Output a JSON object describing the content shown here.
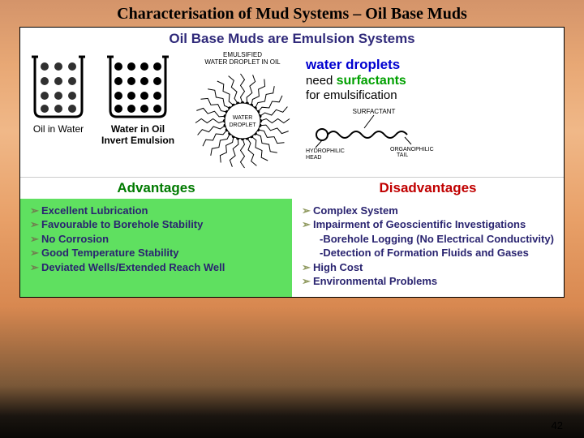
{
  "slide": {
    "title": "Characterisation of Mud Systems – Oil Base Muds",
    "page_number": "42"
  },
  "top_section": {
    "heading": "Oil Base Muds are Emulsion Systems",
    "oil_in_water_label": "Oil in Water",
    "water_in_oil_label": "Water in Oil\nInvert Emulsion",
    "micelle_caption_top": "EMULSIFIED",
    "micelle_caption_bottom": "WATER DROPLET IN OIL",
    "micelle_center": "WATER\nDROPLET",
    "annot_droplets": "water droplets",
    "annot_need": "need ",
    "annot_surfactants": "surfactants",
    "annot_for": "for emulsification",
    "surfactant_label": "SURFACTANT",
    "hydrophilic_label": "HYDROPHILIC\nHEAD",
    "organophilic_label": "ORGANOPHILIC\nTAIL"
  },
  "emulsion_diagrams": {
    "oil_in_water": {
      "container_stroke": "#000000",
      "dot_fill": "#303030",
      "rows": 4,
      "cols": 3,
      "dot_r": 5
    },
    "water_in_oil": {
      "container_stroke": "#000000",
      "dot_fill": "#000000",
      "rows": 4,
      "cols": 4,
      "dot_r": 5
    },
    "micelle": {
      "rays": 24,
      "ray_color": "#000000",
      "head_color": "#000000",
      "center_fill": "#ffffff"
    }
  },
  "advantages": {
    "heading": "Advantages",
    "bg": "#5fe060",
    "text_color": "#2a2470",
    "items": [
      "Excellent Lubrication",
      "Favourable to Borehole Stability",
      "No Corrosion",
      "Good Temperature Stability",
      "Deviated Wells/Extended Reach Well"
    ]
  },
  "disadvantages": {
    "heading": "Disadvantages",
    "bg": "#ffffff",
    "text_color": "#2a2470",
    "items": [
      {
        "text": "Complex System"
      },
      {
        "text": "Impairment of Geoscientific Investigations",
        "sub": [
          "-Borehole Logging (No Electrical Conductivity)",
          "-Detection of Formation Fluids and Gases"
        ]
      },
      {
        "text": "High Cost"
      },
      {
        "text": "Environmental Problems"
      }
    ]
  },
  "colors": {
    "heading_blue": "#302a7a",
    "adv_green": "#007a00",
    "dis_red": "#c00000",
    "link_blue": "#0000d0",
    "surf_green": "#00a000"
  }
}
